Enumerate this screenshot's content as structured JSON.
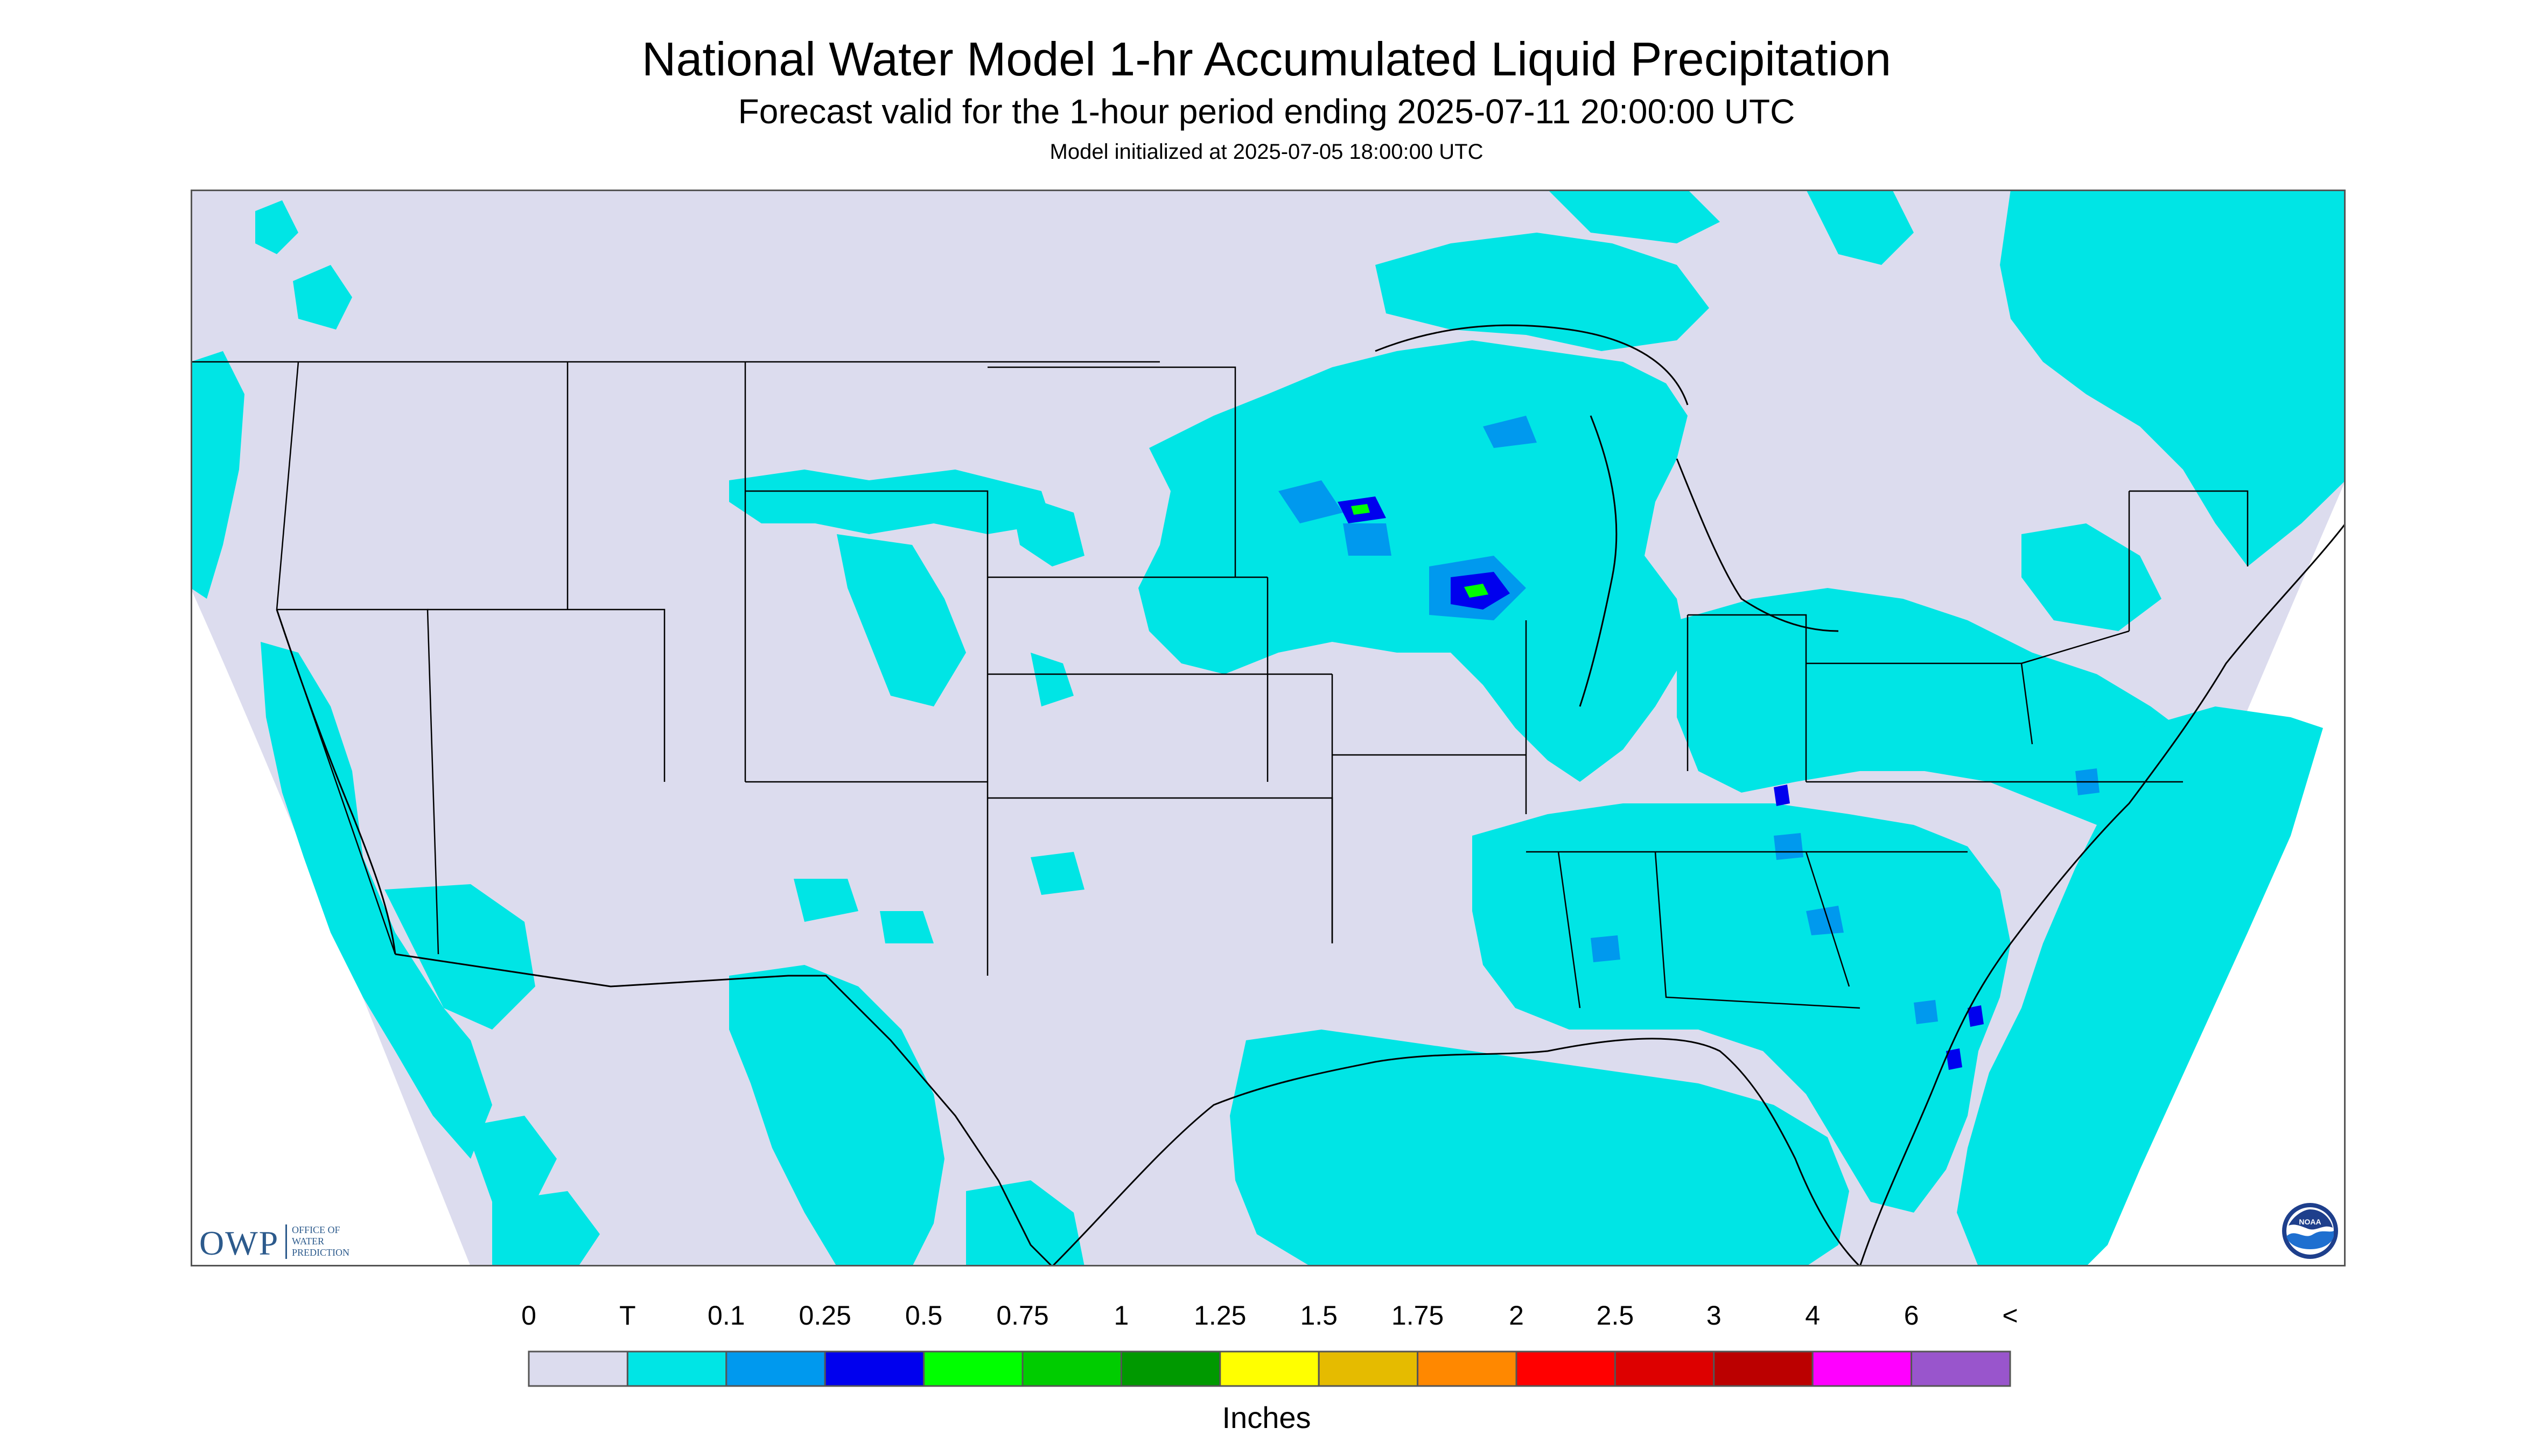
{
  "header": {
    "title": "National Water Model 1-hr Accumulated Liquid Precipitation",
    "subtitle": "Forecast valid for the 1-hour period ending 2025-07-11 20:00:00 UTC",
    "init": "Model initialized at 2025-07-05 18:00:00 UTC"
  },
  "legend": {
    "unit_label": "Inches",
    "ticks": [
      "0",
      "T",
      "0.1",
      "0.25",
      "0.5",
      "0.75",
      "1",
      "1.25",
      "1.5",
      "1.75",
      "2",
      "2.5",
      "3",
      "4",
      "6",
      "<"
    ],
    "colors": [
      "#dcdcee",
      "#00e5e5",
      "#0099ee",
      "#0000ee",
      "#00ff00",
      "#00cc00",
      "#009900",
      "#ffff00",
      "#e5bb00",
      "#ff8800",
      "#ff0000",
      "#dd0000",
      "#bb0000",
      "#ff00ff",
      "#9955cc"
    ]
  },
  "logos": {
    "owp_abbrev": "OWP",
    "owp_name_lines": [
      "OFFICE OF",
      "WATER",
      "PREDICTION"
    ],
    "noaa_label": "NOAA"
  },
  "map": {
    "background_color": "#dcdcee",
    "precip_colors": {
      "trace": "#00e5e5",
      "light": "#0099ee",
      "moderate": "#0000ee",
      "heavy": "#00ff00"
    },
    "boundary_color": "#000000"
  }
}
